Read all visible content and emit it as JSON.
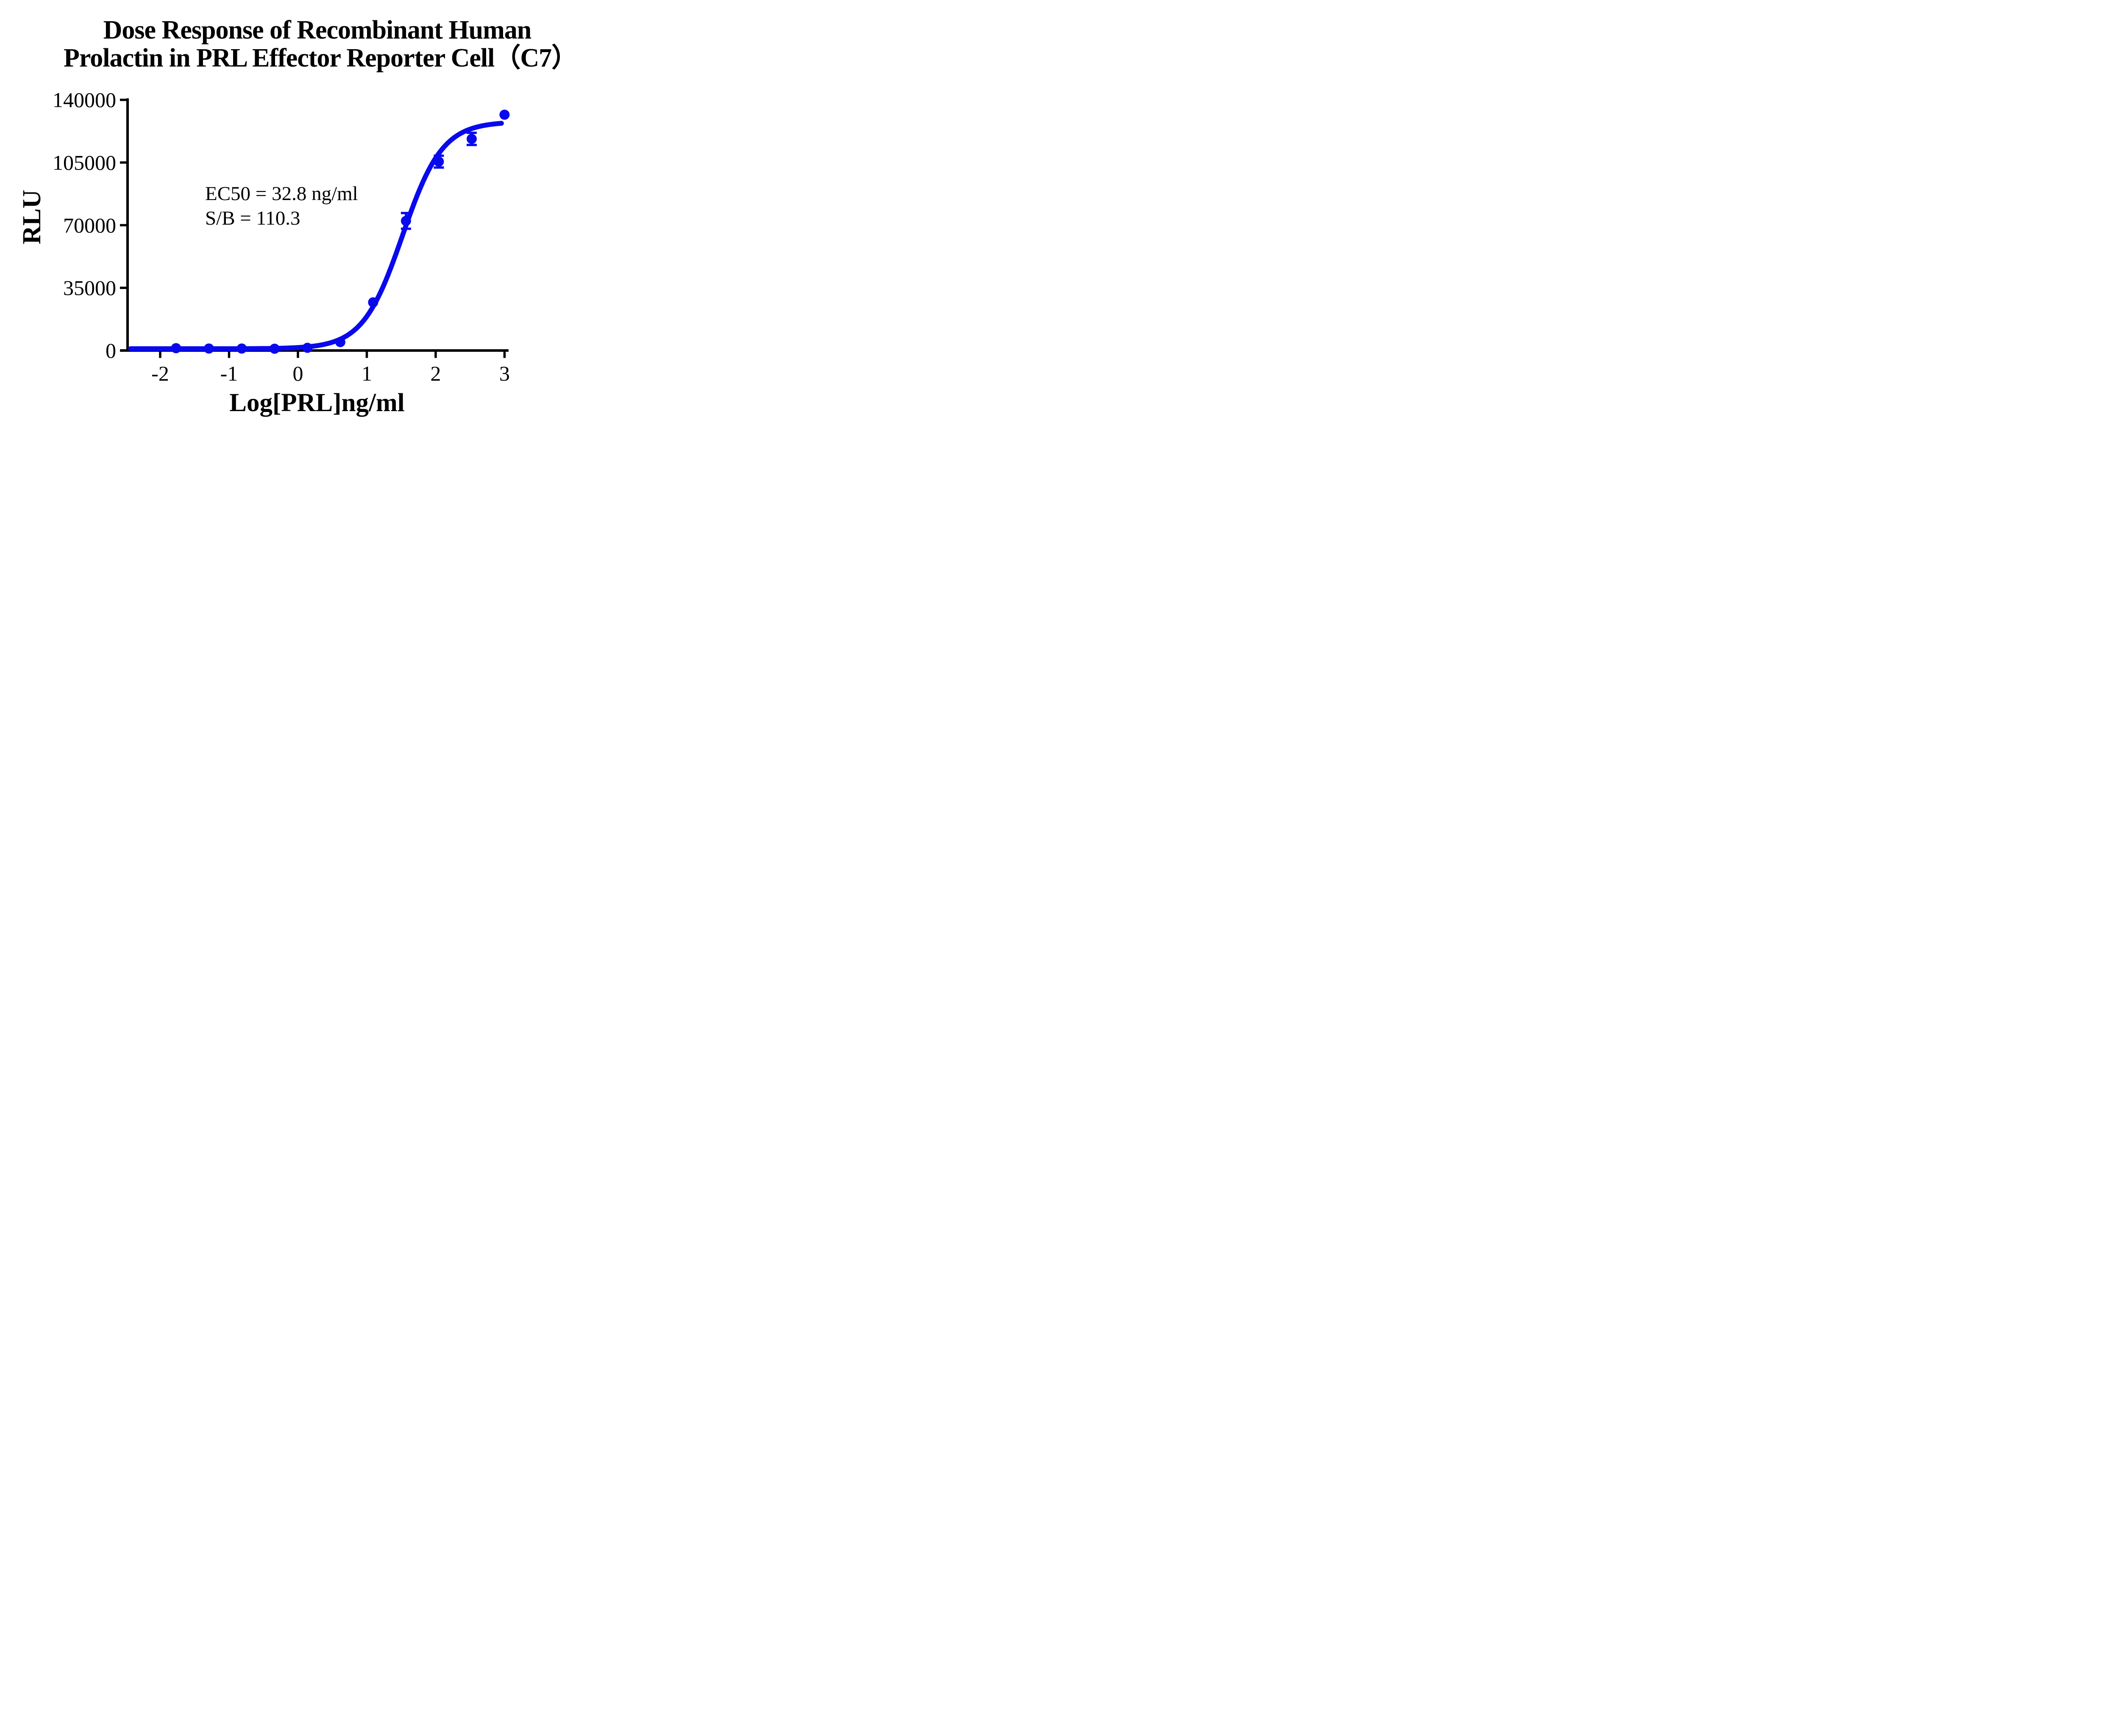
{
  "figure_title": {
    "line1": "Dose Response of Recombinant Human",
    "line2": "Prolactin in PRL Effector Reporter Cell（C7）"
  },
  "annotation": {
    "ec50": "EC50 = 32.8 ng/ml",
    "sb": "S/B = 110.3"
  },
  "chart_data": {
    "type": "scatter",
    "title": "Dose Response of Recombinant Human Prolactin in PRL Effector Reporter Cell（C7）",
    "xlabel": "Log[PRL]ng/ml",
    "ylabel": "RLU",
    "xlim": [
      -2.58,
      3.06
    ],
    "ylim": [
      0,
      140000
    ],
    "x_ticks": [
      -2,
      -1,
      0,
      1,
      2,
      3
    ],
    "y_ticks": [
      0,
      35000,
      70000,
      105000,
      140000
    ],
    "grid": false,
    "legend_position": "none",
    "ec50_ng_ml": 32.8,
    "s_over_b": 110.3,
    "series": [
      {
        "name": "Recombinant Human Prolactin",
        "marker": "circle",
        "log_x": [
          -1.77,
          -1.293,
          -0.816,
          -0.339,
          0.138,
          0.615,
          1.092,
          1.569,
          2.046,
          2.523,
          3.0
        ],
        "y": [
          1300,
          1100,
          1100,
          1000,
          1500,
          4700,
          26900,
          72400,
          105500,
          118200,
          131700
        ],
        "y_err": [
          0,
          0,
          0,
          0,
          0,
          0,
          0,
          4400,
          3300,
          3400,
          0
        ]
      }
    ],
    "fit": {
      "model": "4PL sigmoid",
      "bottom": 1000,
      "top": 127800,
      "log_ec50": 1.52,
      "hill": 1.5,
      "x_start": -2.43,
      "x_end": 2.955
    },
    "colors": {
      "curve": "#0909EE",
      "axis": "#000000",
      "text": "#000000",
      "background": "#FFFFFF"
    }
  }
}
